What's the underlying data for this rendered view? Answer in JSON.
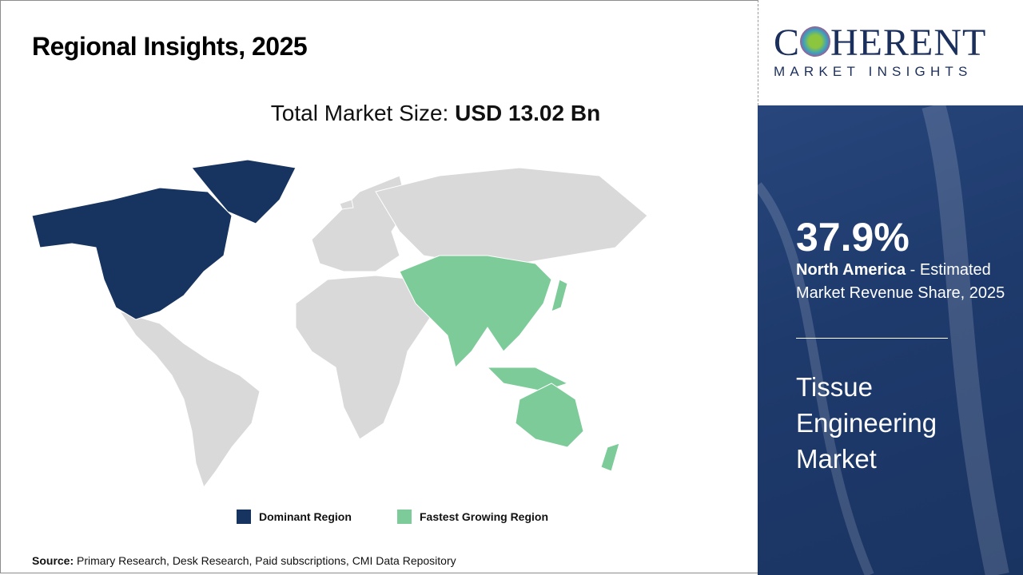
{
  "header": {
    "title": "Regional Insights, 2025"
  },
  "total_market": {
    "label": "Total Market Size: ",
    "value": "USD 13.02 Bn"
  },
  "logo": {
    "line1": "COHERENT",
    "line2": "MARKET INSIGHTS"
  },
  "highlight": {
    "percent": "37.9%",
    "region": "North America",
    "description": " - Estimated Market Revenue Share, 2025"
  },
  "market_name": "Tissue Engineering Market",
  "map": {
    "dominant_region": "North America",
    "fastest_growing_region": "Asia Pacific"
  },
  "legend": [
    {
      "label": "Dominant Region",
      "color": "#17335f"
    },
    {
      "label": "Fastest Growing Region",
      "color": "#7dcb98"
    }
  ],
  "colors": {
    "other_regions": "#d9d9d9",
    "panel": "#1f3a6b"
  },
  "source": {
    "label": "Source:",
    "text": " Primary Research, Desk Research, Paid subscriptions, CMI Data Repository"
  }
}
